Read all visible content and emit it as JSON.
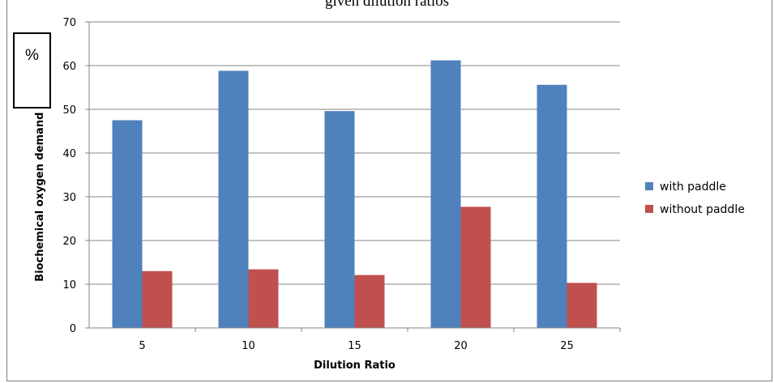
{
  "title": "given dilution ratios",
  "unit_box_text": "%",
  "chart_data": {
    "type": "bar",
    "categories": [
      "5",
      "10",
      "15",
      "20",
      "25"
    ],
    "series": [
      {
        "name": "with paddle",
        "color": "#4f81bd",
        "values": [
          47.5,
          58.8,
          49.6,
          61.2,
          55.6
        ]
      },
      {
        "name": "without paddle",
        "color": "#c0504d",
        "values": [
          13.0,
          13.4,
          12.1,
          27.7,
          10.3
        ]
      }
    ],
    "xlabel": "Dilution Ratio",
    "ylabel": "Biochemical oxygen demand (",
    "ylim": [
      0,
      70
    ],
    "yticks": [
      "0",
      "10",
      "20",
      "30",
      "40",
      "50",
      "60",
      "70"
    ],
    "grid": true,
    "legend": "right"
  }
}
